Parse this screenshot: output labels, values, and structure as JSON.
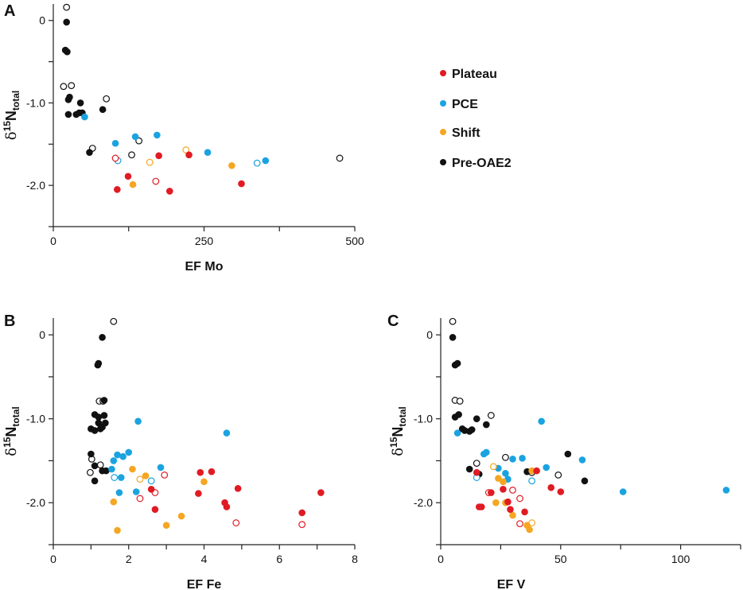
{
  "colors": {
    "Plateau": "#e01b23",
    "PCE": "#1aa3e0",
    "Shift": "#f5a623",
    "Pre-OAE2": "#111111"
  },
  "y_axis_label": {
    "prefix": "δ",
    "superscript": "15",
    "main": "N",
    "subscript": "total"
  },
  "legend": {
    "entries": [
      {
        "label": "Plateau",
        "color": "#e01b23"
      },
      {
        "label": "PCE",
        "color": "#1aa3e0"
      },
      {
        "label": "Shift",
        "color": "#f5a623"
      },
      {
        "label": "Pre-OAE2",
        "color": "#111111"
      }
    ]
  },
  "chart_data": [
    {
      "panel": "A",
      "type": "scatter",
      "xlabel": "EF Mo",
      "xlim": [
        0,
        500
      ],
      "xticks": [
        0,
        250,
        500
      ],
      "ylim": [
        -2.5,
        0.2
      ],
      "yticks": [
        0,
        -1.0,
        -2.0
      ],
      "ytick_labels": [
        "0",
        "-1.0",
        "-2.0"
      ],
      "series": [
        {
          "name": "Pre-OAE2",
          "filled": [
            [
              22,
              -0.02
            ],
            [
              20,
              -0.36
            ],
            [
              23,
              -0.38
            ],
            [
              25,
              -0.96
            ],
            [
              27,
              -0.93
            ],
            [
              25,
              -1.14
            ],
            [
              38,
              -1.14
            ],
            [
              43,
              -1.12
            ],
            [
              45,
              -1.0
            ],
            [
              48,
              -1.12
            ],
            [
              82,
              -1.08
            ],
            [
              60,
              -1.6
            ]
          ],
          "open": [
            [
              22,
              0.16
            ],
            [
              17,
              -0.8
            ],
            [
              30,
              -0.79
            ],
            [
              88,
              -0.95
            ],
            [
              65,
              -1.55
            ],
            [
              142,
              -1.46
            ],
            [
              130,
              -1.63
            ],
            [
              475,
              -1.67
            ]
          ]
        },
        {
          "name": "PCE",
          "filled": [
            [
              52,
              -1.17
            ],
            [
              103,
              -1.49
            ],
            [
              136,
              -1.41
            ],
            [
              172,
              -1.39
            ],
            [
              256,
              -1.6
            ],
            [
              352,
              -1.7
            ]
          ],
          "open": [
            [
              107,
              -1.7
            ],
            [
              338,
              -1.73
            ]
          ]
        },
        {
          "name": "Shift",
          "filled": [
            [
              132,
              -1.99
            ],
            [
              296,
              -1.76
            ]
          ],
          "open": [
            [
              220,
              -1.57
            ],
            [
              160,
              -1.72
            ]
          ]
        },
        {
          "name": "Plateau",
          "filled": [
            [
              106,
              -2.05
            ],
            [
              124,
              -1.89
            ],
            [
              175,
              -1.64
            ],
            [
              225,
              -1.63
            ],
            [
              193,
              -2.07
            ],
            [
              312,
              -1.98
            ]
          ],
          "open": [
            [
              103,
              -1.67
            ],
            [
              170,
              -1.95
            ]
          ]
        }
      ]
    },
    {
      "panel": "B",
      "type": "scatter",
      "xlabel": "EF Fe",
      "xlim": [
        0,
        8
      ],
      "xticks": [
        0,
        2,
        4,
        6,
        8
      ],
      "ylim": [
        -2.5,
        0.2
      ],
      "yticks": [
        0,
        -1.0,
        -2.0
      ],
      "ytick_labels": [
        "0",
        "-1.0",
        "-2.0"
      ],
      "series": [
        {
          "name": "Pre-OAE2",
          "filled": [
            [
              1.3,
              -0.03
            ],
            [
              1.18,
              -0.36
            ],
            [
              1.2,
              -0.34
            ],
            [
              1.35,
              -0.78
            ],
            [
              1.1,
              -0.95
            ],
            [
              1.2,
              -0.98
            ],
            [
              1.35,
              -0.96
            ],
            [
              1.2,
              -1.05
            ],
            [
              1.38,
              -1.05
            ],
            [
              1.0,
              -1.12
            ],
            [
              1.1,
              -1.14
            ],
            [
              1.25,
              -1.12
            ],
            [
              1.3,
              -1.1
            ],
            [
              1.0,
              -1.42
            ],
            [
              1.1,
              -1.56
            ],
            [
              1.3,
              -1.62
            ],
            [
              1.4,
              -1.62
            ],
            [
              1.1,
              -1.74
            ]
          ],
          "open": [
            [
              1.6,
              0.16
            ],
            [
              1.22,
              -0.79
            ],
            [
              1.32,
              -0.79
            ],
            [
              1.02,
              -1.48
            ],
            [
              1.25,
              -1.55
            ],
            [
              0.98,
              -1.64
            ]
          ]
        },
        {
          "name": "PCE",
          "filled": [
            [
              2.25,
              -1.03
            ],
            [
              4.6,
              -1.17
            ],
            [
              1.6,
              -1.5
            ],
            [
              1.7,
              -1.43
            ],
            [
              1.85,
              -1.45
            ],
            [
              2.0,
              -1.4
            ],
            [
              1.55,
              -1.6
            ],
            [
              1.8,
              -1.7
            ],
            [
              2.85,
              -1.58
            ],
            [
              1.75,
              -1.88
            ],
            [
              2.2,
              -1.87
            ]
          ],
          "open": [
            [
              1.62,
              -1.7
            ],
            [
              2.6,
              -1.74
            ]
          ]
        },
        {
          "name": "Shift",
          "filled": [
            [
              2.1,
              -1.6
            ],
            [
              2.45,
              -1.68
            ],
            [
              1.6,
              -1.99
            ],
            [
              4.0,
              -1.75
            ],
            [
              3.4,
              -2.16
            ],
            [
              3.0,
              -2.27
            ],
            [
              1.7,
              -2.33
            ]
          ],
          "open": [
            [
              2.3,
              -1.72
            ]
          ]
        },
        {
          "name": "Plateau",
          "filled": [
            [
              3.9,
              -1.64
            ],
            [
              4.2,
              -1.63
            ],
            [
              2.6,
              -1.84
            ],
            [
              3.85,
              -1.89
            ],
            [
              4.55,
              -2.0
            ],
            [
              4.6,
              -2.05
            ],
            [
              2.7,
              -2.08
            ],
            [
              4.9,
              -1.83
            ],
            [
              7.1,
              -1.88
            ],
            [
              6.6,
              -2.12
            ]
          ],
          "open": [
            [
              2.95,
              -1.67
            ],
            [
              2.7,
              -1.88
            ],
            [
              2.3,
              -1.95
            ],
            [
              4.85,
              -2.24
            ],
            [
              6.6,
              -2.26
            ]
          ]
        }
      ]
    },
    {
      "panel": "C",
      "type": "scatter",
      "xlabel": "EF V",
      "xlim": [
        0,
        125
      ],
      "xticks": [
        0,
        50,
        100
      ],
      "ylim": [
        -2.5,
        0.2
      ],
      "yticks": [
        0,
        -1.0,
        -2.0
      ],
      "ytick_labels": [
        "0",
        "-1.0",
        "-2.0"
      ],
      "series": [
        {
          "name": "Pre-OAE2",
          "filled": [
            [
              5,
              -0.03
            ],
            [
              6,
              -0.36
            ],
            [
              7,
              -0.34
            ],
            [
              6,
              -0.98
            ],
            [
              7.5,
              -0.95
            ],
            [
              9,
              -1.12
            ],
            [
              10,
              -1.14
            ],
            [
              12,
              -1.15
            ],
            [
              13,
              -1.13
            ],
            [
              15,
              -1.0
            ],
            [
              19,
              -1.07
            ],
            [
              12,
              -1.6
            ],
            [
              16,
              -1.66
            ],
            [
              36,
              -1.63
            ],
            [
              53,
              -1.42
            ],
            [
              60,
              -1.74
            ]
          ],
          "open": [
            [
              5,
              0.16
            ],
            [
              6,
              -0.78
            ],
            [
              8,
              -0.79
            ],
            [
              21,
              -0.96
            ],
            [
              15,
              -1.53
            ],
            [
              27,
              -1.46
            ],
            [
              38,
              -1.64
            ],
            [
              49,
              -1.67
            ]
          ]
        },
        {
          "name": "PCE",
          "filled": [
            [
              7,
              -1.17
            ],
            [
              42,
              -1.03
            ],
            [
              18,
              -1.42
            ],
            [
              19,
              -1.4
            ],
            [
              30,
              -1.48
            ],
            [
              34,
              -1.47
            ],
            [
              24,
              -1.59
            ],
            [
              44,
              -1.58
            ],
            [
              59,
              -1.49
            ],
            [
              28,
              -1.72
            ],
            [
              27,
              -1.65
            ],
            [
              76,
              -1.87
            ],
            [
              119,
              -1.85
            ]
          ],
          "open": [
            [
              15,
              -1.7
            ],
            [
              38,
              -1.74
            ]
          ]
        },
        {
          "name": "Shift",
          "filled": [
            [
              24,
              -1.71
            ],
            [
              26,
              -1.75
            ],
            [
              38,
              -1.62
            ],
            [
              23,
              -2.0
            ],
            [
              27,
              -2.0
            ],
            [
              30,
              -2.15
            ],
            [
              36,
              -2.27
            ],
            [
              37,
              -2.32
            ]
          ],
          "open": [
            [
              22,
              -1.57
            ],
            [
              38,
              -2.24
            ]
          ]
        },
        {
          "name": "Plateau",
          "filled": [
            [
              15,
              -1.64
            ],
            [
              26,
              -1.84
            ],
            [
              21,
              -1.88
            ],
            [
              17,
              -2.05
            ],
            [
              28,
              -1.99
            ],
            [
              29,
              -2.08
            ],
            [
              35,
              -2.11
            ],
            [
              40,
              -1.62
            ],
            [
              46,
              -1.82
            ],
            [
              50,
              -1.87
            ],
            [
              16,
              -2.05
            ]
          ],
          "open": [
            [
              20,
              -1.88
            ],
            [
              33,
              -1.95
            ],
            [
              33,
              -2.25
            ],
            [
              30,
              -1.85
            ]
          ]
        }
      ]
    }
  ]
}
